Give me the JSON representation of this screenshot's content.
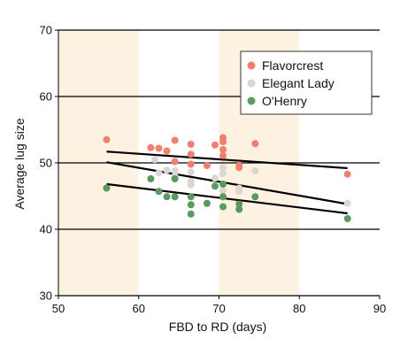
{
  "chart_data": {
    "type": "scatter",
    "title": "",
    "xlabel": "FBD to RD (days)",
    "ylabel": "Average lug size",
    "xlim": [
      50,
      90
    ],
    "ylim": [
      30,
      70
    ],
    "x_ticks": [
      50,
      60,
      70,
      80,
      90
    ],
    "y_ticks": [
      30,
      40,
      50,
      60,
      70
    ],
    "x_tick_labels": [
      "50",
      "60",
      "70",
      "80",
      "90"
    ],
    "y_tick_labels": [
      "30",
      "40",
      "50",
      "60",
      "70"
    ],
    "grid": "horizontal",
    "legend_position": "top-right",
    "background_bands": [
      {
        "x": [
          50,
          60
        ],
        "color": "#fdf2e2"
      },
      {
        "x": [
          60,
          70
        ],
        "color": "#ffffff"
      },
      {
        "x": [
          70,
          80
        ],
        "color": "#fdf2e2"
      },
      {
        "x": [
          80,
          90
        ],
        "color": "#ffffff"
      }
    ],
    "series": [
      {
        "name": "Flavorcrest",
        "color": "#ef7f6f",
        "points": [
          [
            56,
            53.5
          ],
          [
            61.5,
            52.3
          ],
          [
            62.5,
            52.2
          ],
          [
            63.5,
            51.8
          ],
          [
            64.5,
            53.4
          ],
          [
            64.5,
            50.2
          ],
          [
            66.5,
            52.8
          ],
          [
            66.5,
            51.3
          ],
          [
            66.5,
            49.8
          ],
          [
            68.5,
            49.6
          ],
          [
            69.5,
            52.7
          ],
          [
            70.5,
            53.8
          ],
          [
            70.5,
            53.2
          ],
          [
            70.5,
            52.0
          ],
          [
            70.5,
            51.1
          ],
          [
            72.5,
            49.6
          ],
          [
            72.5,
            49.3
          ],
          [
            74.5,
            52.9
          ],
          [
            86,
            48.3
          ]
        ],
        "trend": [
          [
            56,
            51.7
          ],
          [
            86,
            49.2
          ]
        ]
      },
      {
        "name": "Elegant Lady",
        "color": "#dad7d2",
        "points": [
          [
            62,
            50.5
          ],
          [
            62.5,
            48.5
          ],
          [
            63.5,
            48.9
          ],
          [
            64.5,
            48.8
          ],
          [
            64.5,
            48.0
          ],
          [
            66.5,
            48.6
          ],
          [
            66.5,
            47.2
          ],
          [
            66.5,
            46.7
          ],
          [
            69.5,
            47.7
          ],
          [
            70.5,
            49.3
          ],
          [
            70.5,
            48.4
          ],
          [
            70.5,
            45.8
          ],
          [
            72.5,
            46.2
          ],
          [
            72.5,
            45.7
          ],
          [
            74.5,
            48.8
          ],
          [
            86,
            43.9
          ]
        ],
        "trend": [
          [
            56,
            50.1
          ],
          [
            86,
            43.8
          ]
        ]
      },
      {
        "name": "O'Henry",
        "color": "#5b9a5e",
        "points": [
          [
            56,
            46.2
          ],
          [
            61.5,
            47.6
          ],
          [
            62.5,
            45.7
          ],
          [
            63.5,
            44.9
          ],
          [
            64.5,
            47.6
          ],
          [
            64.5,
            44.9
          ],
          [
            66.5,
            44.9
          ],
          [
            66.5,
            43.7
          ],
          [
            66.5,
            42.3
          ],
          [
            68.5,
            43.9
          ],
          [
            69.5,
            46.5
          ],
          [
            70.5,
            46.8
          ],
          [
            70.5,
            44.9
          ],
          [
            70.5,
            43.4
          ],
          [
            72.5,
            43.8
          ],
          [
            72.5,
            43.0
          ],
          [
            74.5,
            44.9
          ],
          [
            86,
            41.6
          ]
        ],
        "trend": [
          [
            56,
            46.8
          ],
          [
            86,
            42.4
          ]
        ]
      }
    ]
  }
}
